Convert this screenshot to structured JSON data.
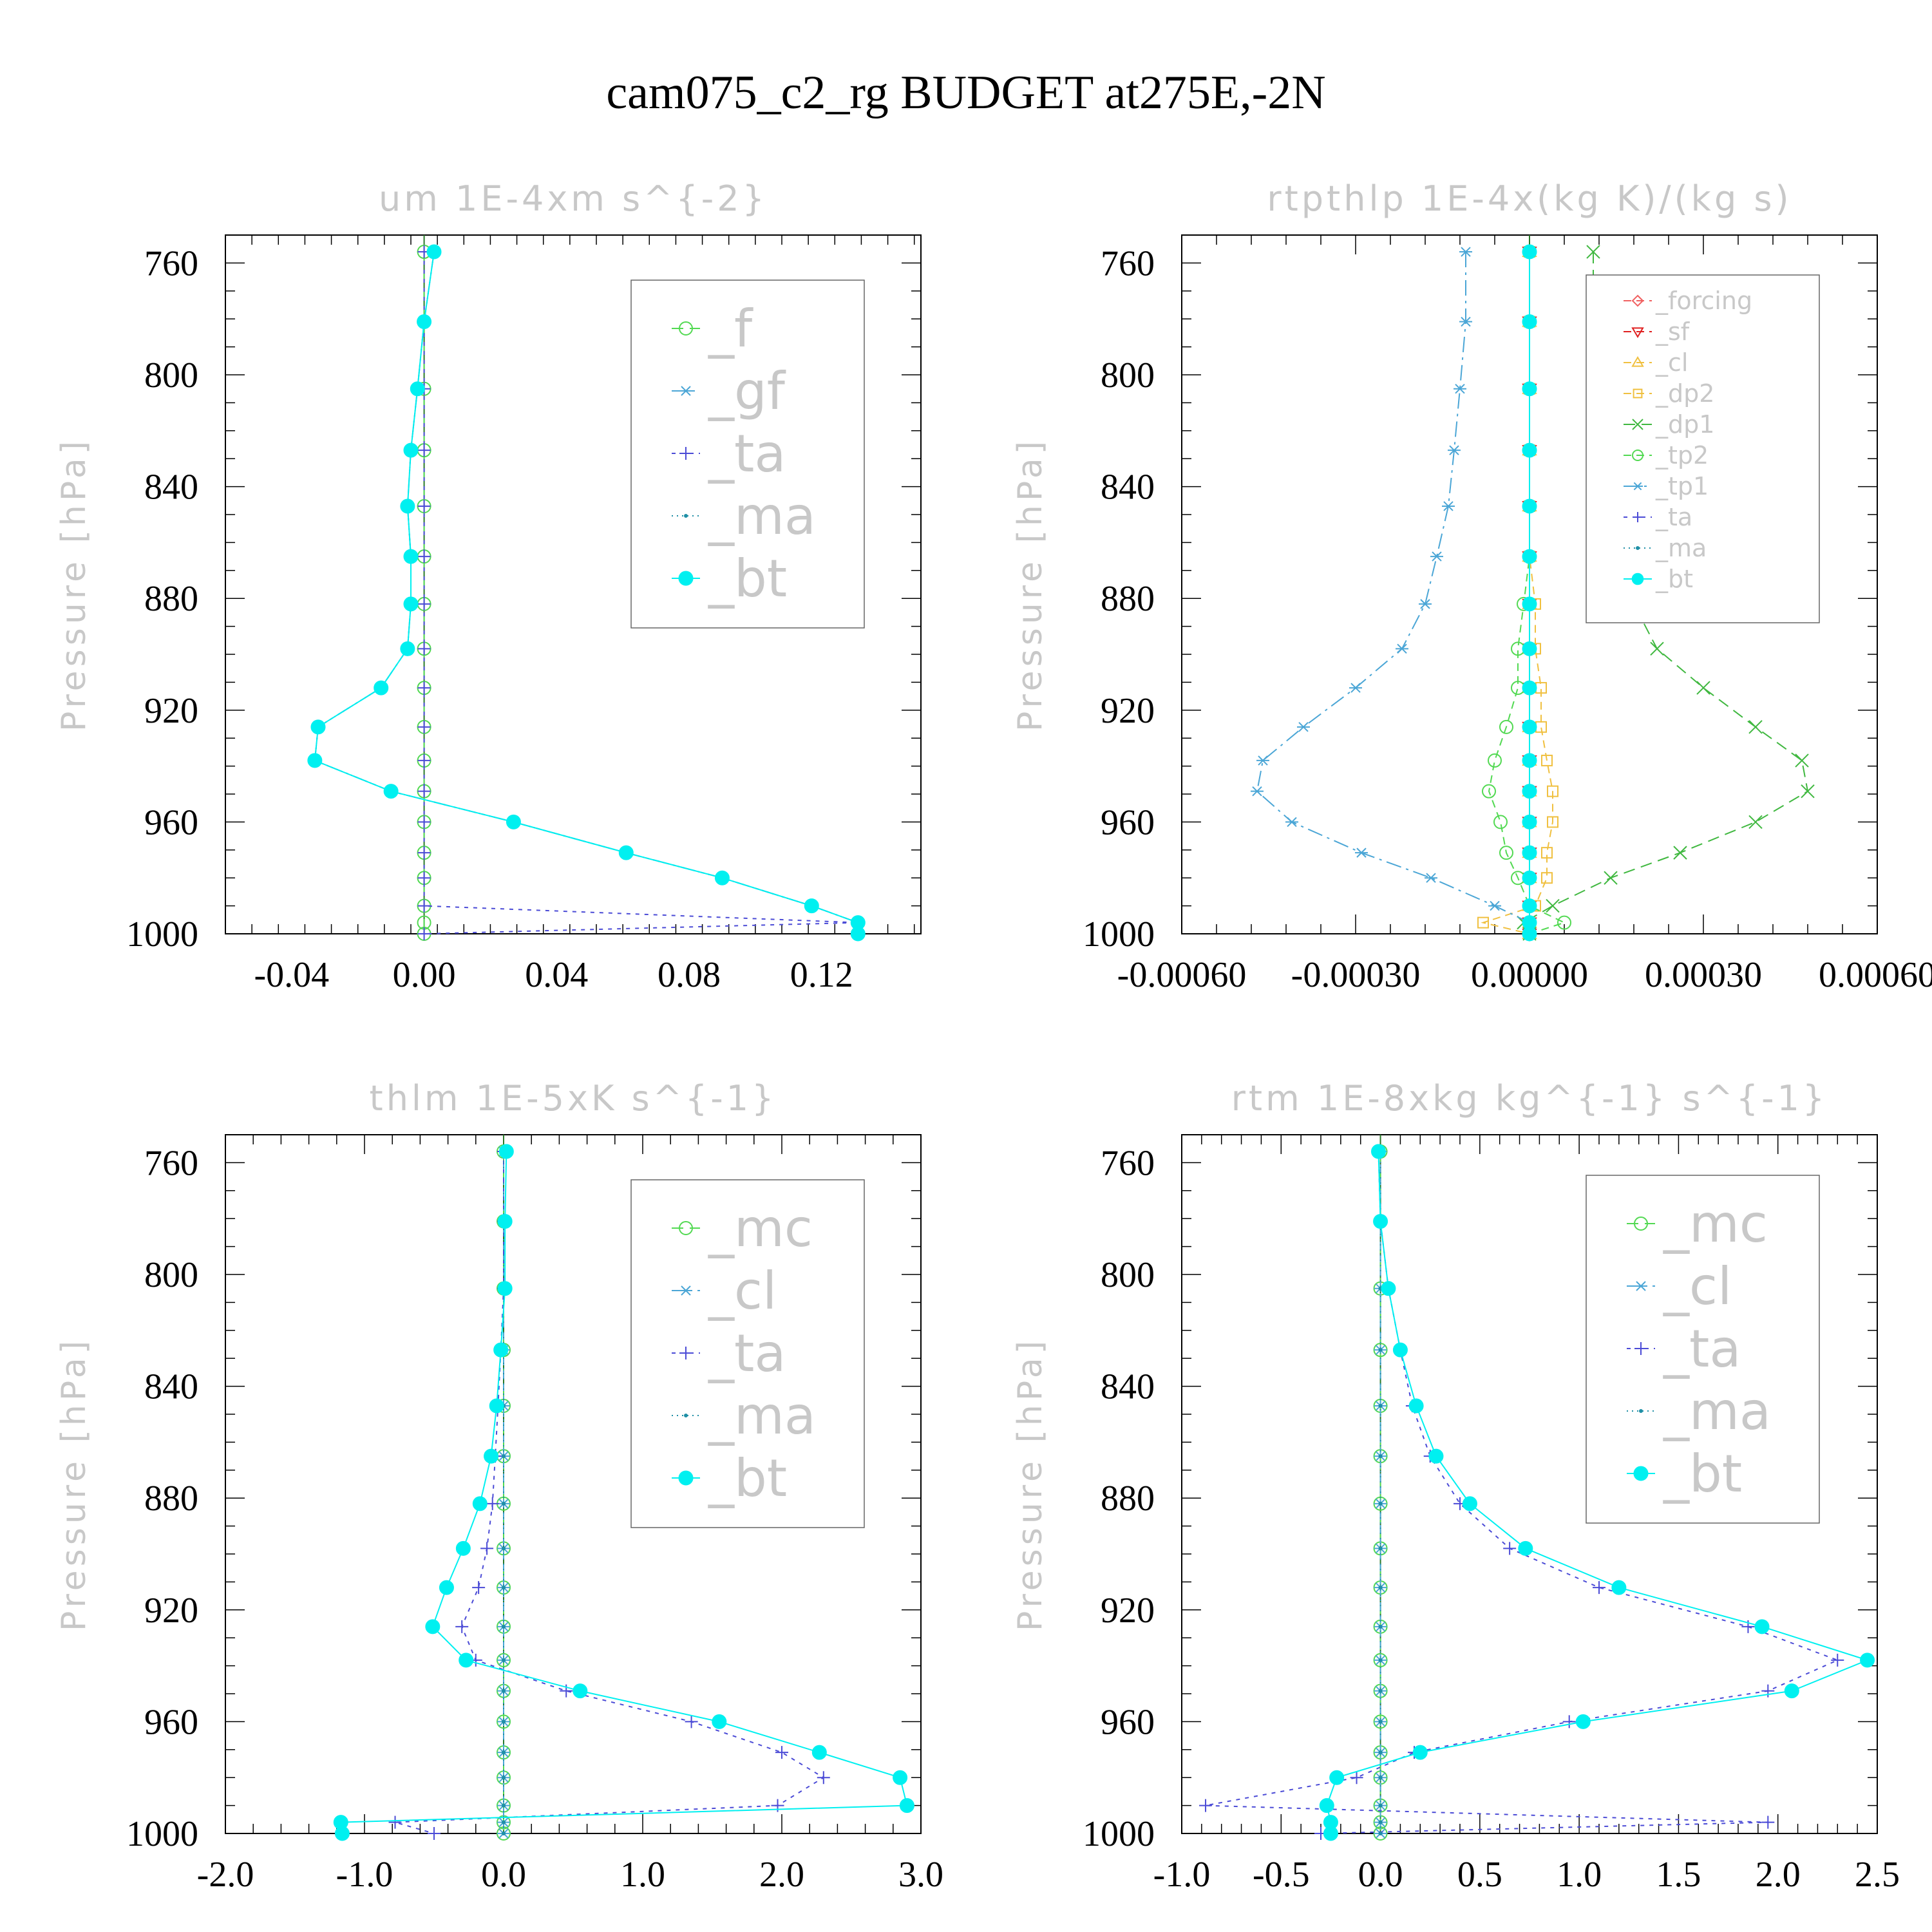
{
  "title": "cam075_c2_rg  BUDGET at275E,-2N",
  "colors": {
    "f": "#52d952",
    "gf": "#4ba6d6",
    "ta": "#4b4bd6",
    "ma": "#1f8fa6",
    "bt": "#00f0f0",
    "mc": "#52d952",
    "cl": "#4ba6d6",
    "forcing": "#f06060",
    "sf": "#e02020",
    "cl_rt": "#f0c040",
    "dp2": "#f0c040",
    "dp1": "#40b840",
    "tp2": "#52d952",
    "tp1": "#4ba6d6",
    "zero_line": "#2a7a2a",
    "axis": "#000000",
    "legend_text": "#c8c8c8"
  },
  "chart_data": [
    {
      "type": "line",
      "title": "um   1E-4xm s^{-2}",
      "ylabel": "Pressure [hPa]",
      "xlim": [
        -0.06,
        0.15
      ],
      "ylim": [
        750,
        1000
      ],
      "y_inverted": true,
      "xticks": [
        "-0.04",
        "0.00",
        "0.04",
        "0.08",
        "0.12"
      ],
      "xtick_values": [
        -0.04,
        0.0,
        0.04,
        0.08,
        0.12
      ],
      "yticks": [
        "760",
        "800",
        "840",
        "880",
        "920",
        "960",
        "1000"
      ],
      "legend_position": "top-right",
      "levels": [
        756,
        781,
        805,
        827,
        847,
        865,
        882,
        898,
        912,
        926,
        938,
        949,
        960,
        971,
        980,
        990,
        996,
        1000
      ],
      "series": [
        {
          "name": "_f",
          "marker": "circle-open",
          "values": [
            0,
            0,
            0,
            0,
            0,
            0,
            0,
            0,
            0,
            0,
            0,
            0,
            0,
            0,
            0,
            0,
            0,
            0
          ]
        },
        {
          "name": "_gf",
          "marker": "asterisk",
          "values": [
            0.003,
            0.0,
            -0.002,
            -0.004,
            -0.005,
            -0.004,
            -0.004,
            -0.005,
            -0.013,
            -0.032,
            -0.033,
            -0.01,
            0.027,
            0.061,
            0.09,
            0.117,
            0.131,
            0.131
          ]
        },
        {
          "name": "_ta",
          "marker": "plus",
          "values": [
            0,
            0,
            0,
            0,
            0,
            0,
            0,
            0,
            0,
            0,
            0,
            0,
            0,
            0,
            0,
            0,
            0.131,
            0.0
          ]
        },
        {
          "name": "_ma",
          "marker": "dot",
          "values": [
            0.003,
            0.0,
            -0.002,
            -0.004,
            -0.005,
            -0.004,
            -0.004,
            -0.005,
            -0.013,
            -0.032,
            -0.033,
            -0.01,
            0.027,
            0.061,
            0.09,
            0.117,
            0.131,
            0.131
          ]
        },
        {
          "name": "_bt",
          "marker": "filled-circle",
          "values": [
            0.003,
            0.0,
            -0.002,
            -0.004,
            -0.005,
            -0.004,
            -0.004,
            -0.005,
            -0.013,
            -0.032,
            -0.033,
            -0.01,
            0.027,
            0.061,
            0.09,
            0.117,
            0.131,
            0.131
          ]
        }
      ]
    },
    {
      "type": "line",
      "title": "rtpthlp   1E-4x(kg K)/(kg s)",
      "ylabel": "Pressure [hPa]",
      "xlim": [
        -0.0006,
        0.0006
      ],
      "ylim": [
        750,
        1000
      ],
      "y_inverted": true,
      "xticks": [
        "-0.00060",
        "-0.00030",
        "0.00000",
        "0.00030",
        "0.00060"
      ],
      "xtick_values": [
        -0.0006,
        -0.0003,
        0.0,
        0.0003,
        0.0006
      ],
      "yticks": [
        "760",
        "800",
        "840",
        "880",
        "920",
        "960",
        "1000"
      ],
      "legend_position": "top-right",
      "levels": [
        756,
        781,
        805,
        827,
        847,
        865,
        882,
        898,
        912,
        926,
        938,
        949,
        960,
        971,
        980,
        990,
        996,
        1000
      ],
      "series": [
        {
          "name": "_forcing",
          "marker": "diamond",
          "values": [
            0,
            0,
            0,
            0,
            0,
            0,
            0,
            0,
            0,
            0,
            0,
            0,
            0,
            0,
            0,
            0,
            0,
            0
          ]
        },
        {
          "name": "_sf",
          "marker": "triangle-down",
          "values": [
            0,
            0,
            0,
            0,
            0,
            0,
            0,
            0,
            0,
            0,
            0,
            0,
            0,
            0,
            0,
            0,
            0,
            0
          ]
        },
        {
          "name": "_cl",
          "marker": "triangle-up",
          "values": [
            0,
            0,
            0,
            0,
            0,
            0,
            0,
            0,
            0,
            0,
            0,
            0,
            0,
            0,
            0,
            0,
            0,
            0
          ]
        },
        {
          "name": "_dp2",
          "marker": "square",
          "values": [
            0,
            0,
            0,
            0,
            0,
            0,
            1e-05,
            1e-05,
            2e-05,
            2e-05,
            3e-05,
            4e-05,
            4e-05,
            3e-05,
            3e-05,
            1e-05,
            -8e-05,
            0.0
          ]
        },
        {
          "name": "_dp1",
          "marker": "cross",
          "values": [
            0.00011,
            0.00011,
            0.00012,
            0.00013,
            0.00014,
            0.00015,
            0.00018,
            0.00022,
            0.0003,
            0.00039,
            0.00047,
            0.00048,
            0.00039,
            0.00026,
            0.00014,
            4e-05,
            -1e-05,
            0.0
          ]
        },
        {
          "name": "_tp2",
          "marker": "circle-open",
          "values": [
            0,
            0,
            0,
            0,
            0,
            0,
            -1e-05,
            -2e-05,
            -2e-05,
            -4e-05,
            -6e-05,
            -7e-05,
            -5e-05,
            -4e-05,
            -2e-05,
            0.0,
            6e-05,
            0.0
          ]
        },
        {
          "name": "_tp1",
          "marker": "asterisk",
          "values": [
            -0.00011,
            -0.00011,
            -0.00012,
            -0.00013,
            -0.00014,
            -0.00016,
            -0.00018,
            -0.00022,
            -0.0003,
            -0.00039,
            -0.00046,
            -0.00047,
            -0.00041,
            -0.00029,
            -0.00017,
            -6e-05,
            0.0,
            0.0
          ]
        },
        {
          "name": "_ta",
          "marker": "plus",
          "values": [
            0,
            0,
            0,
            0,
            0,
            0,
            0,
            0,
            0,
            0,
            0,
            0,
            0,
            0,
            0,
            0,
            0,
            0
          ]
        },
        {
          "name": "_ma",
          "marker": "dot",
          "values": [
            0,
            0,
            0,
            0,
            0,
            0,
            0,
            0,
            0,
            0,
            0,
            0,
            0,
            0,
            0,
            0,
            0,
            0
          ]
        },
        {
          "name": "_bt",
          "marker": "filled-circle",
          "values": [
            0,
            0,
            0,
            0,
            0,
            0,
            0,
            0,
            0,
            0,
            0,
            0,
            0,
            0,
            0,
            0,
            0,
            0
          ]
        }
      ]
    },
    {
      "type": "line",
      "title": "thlm   1E-5xK s^{-1}",
      "ylabel": "Pressure [hPa]",
      "xlim": [
        -2.0,
        3.0
      ],
      "ylim": [
        750,
        1000
      ],
      "y_inverted": true,
      "xticks": [
        "-2.0",
        "-1.0",
        "0.0",
        "1.0",
        "2.0",
        "3.0"
      ],
      "xtick_values": [
        -2.0,
        -1.0,
        0.0,
        1.0,
        2.0,
        3.0
      ],
      "yticks": [
        "760",
        "800",
        "840",
        "880",
        "920",
        "960",
        "1000"
      ],
      "legend_position": "top-right",
      "levels": [
        756,
        781,
        805,
        827,
        847,
        865,
        882,
        898,
        912,
        926,
        938,
        949,
        960,
        971,
        980,
        990,
        996,
        1000
      ],
      "series": [
        {
          "name": "_mc",
          "marker": "circle-open",
          "values": [
            0,
            0,
            0,
            0,
            0,
            0,
            0,
            0,
            0,
            0,
            0,
            0,
            0,
            0,
            0,
            0,
            0,
            0
          ]
        },
        {
          "name": "_cl",
          "marker": "asterisk",
          "values": [
            0,
            0,
            0,
            0,
            0,
            0,
            0,
            0,
            0,
            0,
            0,
            0,
            0,
            0,
            0,
            0,
            0,
            0
          ]
        },
        {
          "name": "_ta",
          "marker": "plus",
          "values": [
            0.0,
            0.0,
            0.0,
            -0.02,
            -0.04,
            -0.06,
            -0.08,
            -0.12,
            -0.18,
            -0.3,
            -0.2,
            0.45,
            1.35,
            2.0,
            2.3,
            1.97,
            -0.78,
            -0.5
          ]
        },
        {
          "name": "_ma",
          "marker": "dot",
          "values": [
            0,
            0,
            0,
            0,
            0,
            0,
            0,
            0,
            0,
            0,
            0,
            0,
            0,
            0,
            0,
            0,
            0,
            0
          ]
        },
        {
          "name": "_bt",
          "marker": "filled-circle",
          "values": [
            0.02,
            0.01,
            0.01,
            -0.02,
            -0.05,
            -0.09,
            -0.17,
            -0.29,
            -0.41,
            -0.51,
            -0.27,
            0.55,
            1.55,
            2.27,
            2.85,
            2.9,
            -1.17,
            -1.16
          ]
        }
      ]
    },
    {
      "type": "line",
      "title": "rtm   1E-8xkg kg^{-1} s^{-1}",
      "ylabel": "Pressure [hPa]",
      "xlim": [
        -1.0,
        2.5
      ],
      "ylim": [
        750,
        1000
      ],
      "y_inverted": true,
      "xticks": [
        "-1.0",
        "-0.5",
        "0.0",
        "0.5",
        "1.0",
        "1.5",
        "2.0",
        "2.5"
      ],
      "xtick_values": [
        -1.0,
        -0.5,
        0.0,
        0.5,
        1.0,
        1.5,
        2.0,
        2.5
      ],
      "yticks": [
        "760",
        "800",
        "840",
        "880",
        "920",
        "960",
        "1000"
      ],
      "legend_position": "top-right",
      "levels": [
        756,
        781,
        805,
        827,
        847,
        865,
        882,
        898,
        912,
        926,
        938,
        949,
        960,
        971,
        980,
        990,
        996,
        1000
      ],
      "series": [
        {
          "name": "_mc",
          "marker": "circle-open",
          "values": [
            0,
            0,
            0,
            0,
            0,
            0,
            0,
            0,
            0,
            0,
            0,
            0,
            0,
            0,
            0,
            0,
            0,
            0
          ]
        },
        {
          "name": "_cl",
          "marker": "asterisk",
          "values": [
            0,
            0,
            0,
            0,
            0,
            0,
            0,
            0,
            0,
            0,
            0,
            0,
            0,
            0,
            0,
            0,
            0,
            0
          ]
        },
        {
          "name": "_ta",
          "marker": "plus",
          "values": [
            -0.01,
            0.0,
            0.04,
            0.1,
            0.16,
            0.25,
            0.4,
            0.65,
            1.1,
            1.85,
            2.3,
            1.95,
            0.95,
            0.17,
            -0.12,
            -0.88,
            1.95,
            -0.3
          ]
        },
        {
          "name": "_ma",
          "marker": "dot",
          "values": [
            0,
            0,
            0,
            0,
            0,
            0,
            0,
            0,
            0,
            0,
            0,
            0,
            0,
            0,
            0,
            0,
            0,
            0
          ]
        },
        {
          "name": "_bt",
          "marker": "filled-circle",
          "values": [
            -0.01,
            0.0,
            0.04,
            0.1,
            0.18,
            0.28,
            0.45,
            0.73,
            1.2,
            1.92,
            2.45,
            2.07,
            1.02,
            0.2,
            -0.22,
            -0.27,
            -0.25,
            -0.25
          ]
        }
      ]
    }
  ]
}
